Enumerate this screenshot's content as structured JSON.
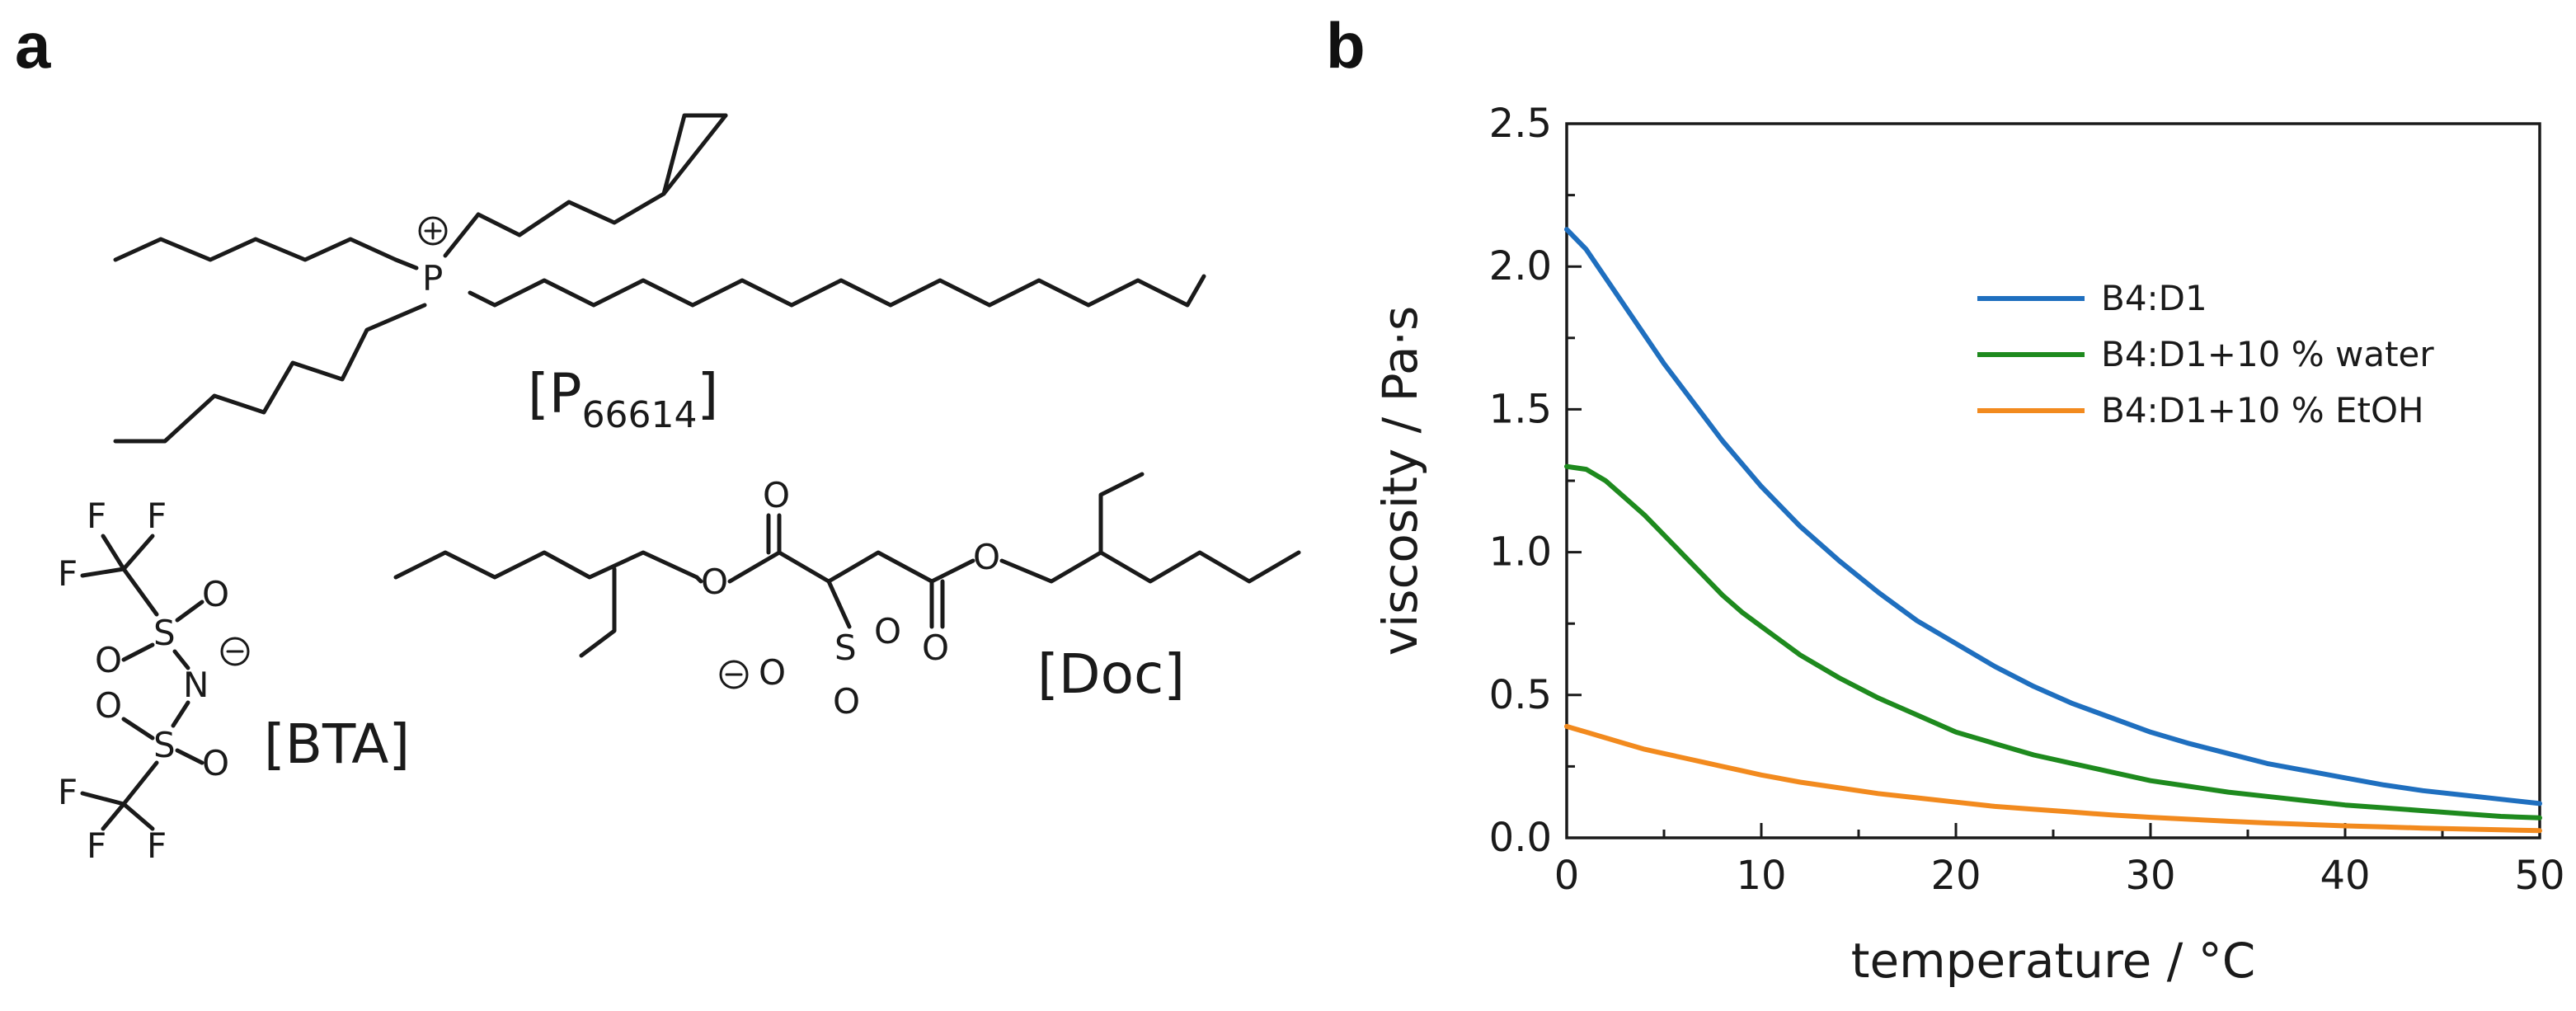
{
  "panels": {
    "a": {
      "letter": "a"
    },
    "b": {
      "letter": "b"
    }
  },
  "structures": {
    "cation": {
      "label": "[P",
      "subscript": "66614",
      "label_close": "]",
      "center_atom": "P",
      "charge": "+"
    },
    "anion_bta": {
      "label": "[BTA]",
      "charge": "−",
      "atoms": {
        "F": "F",
        "S": "S",
        "O": "O",
        "N": "N"
      }
    },
    "anion_doc": {
      "label": "[Doc]",
      "charge": "−",
      "atoms": {
        "O": "O",
        "S": "S"
      }
    }
  },
  "chart_data": {
    "type": "line",
    "title": "",
    "xlabel": "temperature / °C",
    "ylabel": "viscosity / Pa·s",
    "xlim": [
      0,
      50
    ],
    "ylim": [
      0,
      2.5
    ],
    "xticks": [
      "0",
      "10",
      "20",
      "30",
      "40",
      "50"
    ],
    "yticks": [
      "0.0",
      "0.5",
      "1.0",
      "1.5",
      "2.0",
      "2.5"
    ],
    "grid": false,
    "legend_position": "top-right",
    "x": [
      0,
      1,
      2,
      3,
      4,
      5,
      6,
      7,
      8,
      9,
      10,
      12,
      14,
      16,
      18,
      20,
      22,
      24,
      26,
      28,
      30,
      32,
      34,
      36,
      38,
      40,
      42,
      44,
      46,
      48,
      50
    ],
    "series": [
      {
        "name": "B4:D1",
        "color": "#1f6fbf",
        "values": [
          2.13,
          2.06,
          1.96,
          1.86,
          1.76,
          1.66,
          1.57,
          1.48,
          1.39,
          1.31,
          1.23,
          1.09,
          0.97,
          0.86,
          0.76,
          0.68,
          0.6,
          0.53,
          0.47,
          0.42,
          0.37,
          0.33,
          0.295,
          0.26,
          0.235,
          0.21,
          0.185,
          0.165,
          0.15,
          0.135,
          0.12
        ]
      },
      {
        "name": "B4:D1+10 % water",
        "color": "#1e8a1e",
        "values": [
          1.3,
          1.29,
          1.25,
          1.19,
          1.13,
          1.06,
          0.99,
          0.92,
          0.85,
          0.79,
          0.74,
          0.64,
          0.56,
          0.49,
          0.43,
          0.37,
          0.33,
          0.29,
          0.26,
          0.23,
          0.2,
          0.18,
          0.16,
          0.145,
          0.13,
          0.115,
          0.105,
          0.095,
          0.085,
          0.075,
          0.07
        ]
      },
      {
        "name": "B4:D1+10 % EtOH",
        "color": "#f28a1e",
        "values": [
          0.39,
          0.37,
          0.35,
          0.33,
          0.31,
          0.295,
          0.28,
          0.265,
          0.25,
          0.235,
          0.22,
          0.195,
          0.175,
          0.155,
          0.14,
          0.125,
          0.11,
          0.1,
          0.09,
          0.08,
          0.072,
          0.065,
          0.058,
          0.052,
          0.047,
          0.042,
          0.038,
          0.034,
          0.031,
          0.028,
          0.025
        ]
      }
    ]
  }
}
